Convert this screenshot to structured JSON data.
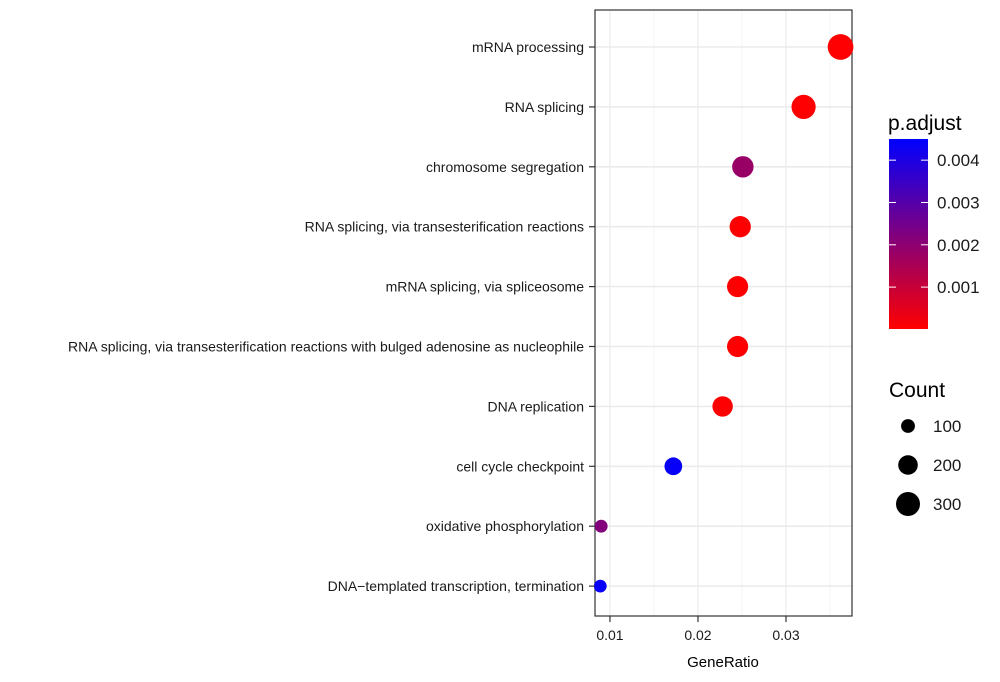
{
  "chart_data": {
    "type": "scatter",
    "xlabel": "GeneRatio",
    "ylabel": "",
    "xlim": [
      0.0083,
      0.0375
    ],
    "x_ticks": [
      0.01,
      0.02,
      0.03
    ],
    "x_tick_labels": [
      "0.01",
      "0.02",
      "0.03"
    ],
    "grid": true,
    "legend_position": "right",
    "categories": [
      "mRNA processing",
      "RNA splicing",
      "chromosome segregation",
      "RNA splicing, via transesterification reactions",
      "mRNA splicing, via spliceosome",
      "RNA splicing, via transesterification reactions with bulged adenosine as nucleophile",
      "DNA replication",
      "cell cycle checkpoint",
      "oxidative phosphorylation",
      "DNA−templated transcription, termination"
    ],
    "points": [
      {
        "term": "mRNA processing",
        "gene_ratio": 0.0362,
        "count": 345,
        "p_adjust": 2e-05
      },
      {
        "term": "RNA splicing",
        "gene_ratio": 0.032,
        "count": 305,
        "p_adjust": 3e-05
      },
      {
        "term": "chromosome segregation",
        "gene_ratio": 0.0251,
        "count": 240,
        "p_adjust": 0.0018
      },
      {
        "term": "RNA splicing, via transesterification reactions",
        "gene_ratio": 0.0248,
        "count": 236,
        "p_adjust": 4e-05
      },
      {
        "term": "mRNA splicing, via spliceosome",
        "gene_ratio": 0.0245,
        "count": 233,
        "p_adjust": 4e-05
      },
      {
        "term": "RNA splicing, via transesterification reactions with bulged adenosine as nucleophile",
        "gene_ratio": 0.0245,
        "count": 233,
        "p_adjust": 4e-05
      },
      {
        "term": "DNA replication",
        "gene_ratio": 0.0228,
        "count": 217,
        "p_adjust": 5e-05
      },
      {
        "term": "cell cycle checkpoint",
        "gene_ratio": 0.0172,
        "count": 164,
        "p_adjust": 0.0044
      },
      {
        "term": "oxidative phosphorylation",
        "gene_ratio": 0.009,
        "count": 86,
        "p_adjust": 0.0022
      },
      {
        "term": "DNA−templated transcription, termination",
        "gene_ratio": 0.0089,
        "count": 85,
        "p_adjust": 0.0044
      }
    ],
    "color_legend": {
      "title": "p.adjust",
      "min": 1e-05,
      "max": 0.0045,
      "low_color": "#ff0000",
      "high_color": "#0000ff",
      "ticks": [
        0.004,
        0.003,
        0.002,
        0.001
      ],
      "tick_labels": [
        "0.004",
        "0.003",
        "0.002",
        "0.001"
      ]
    },
    "size_legend": {
      "title": "Count",
      "values": [
        100,
        200,
        300
      ],
      "labels": [
        "100",
        "200",
        "300"
      ],
      "color": "#000000"
    }
  }
}
